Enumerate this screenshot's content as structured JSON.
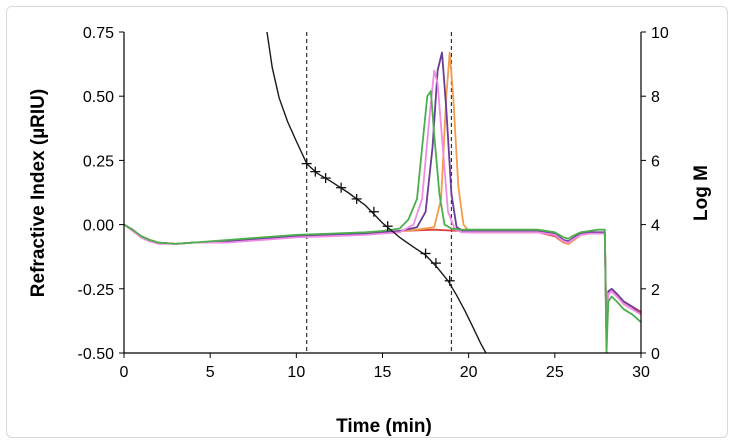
{
  "chart_data": {
    "type": "line",
    "xlabel": "Time (min)",
    "ylabel_left": "Refractive Index (µRIU)",
    "ylabel_right": "Log M",
    "xlim": [
      0,
      30
    ],
    "ylim_left": [
      -0.5,
      0.75
    ],
    "ylim_right": [
      0,
      10
    ],
    "x_ticks": [
      "0",
      "5",
      "10",
      "15",
      "20",
      "25",
      "30"
    ],
    "y_left_ticks": [
      "0.75",
      "0.50",
      "0.25",
      "0.00",
      "-0.25",
      "-0.50"
    ],
    "y_right_ticks": [
      "10",
      "8",
      "6",
      "4",
      "2",
      "0"
    ],
    "grid": false,
    "vlines": [
      10.6,
      19.0
    ],
    "colors": {
      "green": "#4cae4c",
      "pink": "#f08ce6",
      "purple": "#6a3d9a",
      "orange": "#f39c4c",
      "red": "#d94040",
      "calibration": "#1a1a1a"
    },
    "series": [
      {
        "color": "green",
        "axis": "left",
        "x": [
          0,
          0.5,
          1.0,
          1.5,
          2.0,
          3.0,
          4.0,
          6.0,
          8.0,
          10.0,
          12.0,
          14.0,
          15.0,
          16.0,
          16.5,
          17.0,
          17.3,
          17.6,
          17.8,
          18.0,
          18.3,
          18.6,
          19.0,
          19.5,
          20.0,
          22.0,
          24.0,
          25.0,
          25.5,
          25.8,
          26.0,
          26.5,
          27.0,
          27.5,
          27.9,
          28.0,
          28.1,
          28.3,
          28.6,
          29.0,
          29.5,
          30.0
        ],
        "y": [
          0.0,
          -0.02,
          -0.045,
          -0.06,
          -0.07,
          -0.075,
          -0.07,
          -0.06,
          -0.05,
          -0.04,
          -0.035,
          -0.03,
          -0.025,
          -0.015,
          0.02,
          0.1,
          0.3,
          0.5,
          0.52,
          0.35,
          0.12,
          0.0,
          -0.015,
          -0.02,
          -0.02,
          -0.02,
          -0.02,
          -0.03,
          -0.05,
          -0.055,
          -0.045,
          -0.03,
          -0.025,
          -0.02,
          -0.02,
          -0.5,
          -0.3,
          -0.28,
          -0.3,
          -0.33,
          -0.35,
          -0.38
        ]
      },
      {
        "color": "pink",
        "axis": "left",
        "x": [
          0,
          0.5,
          1.0,
          1.5,
          2.0,
          3.0,
          4.0,
          6.0,
          8.0,
          10.0,
          12.0,
          14.0,
          15.0,
          16.0,
          16.8,
          17.3,
          17.7,
          18.0,
          18.2,
          18.5,
          18.8,
          19.2,
          19.6,
          20.0,
          22.0,
          24.0,
          25.0,
          25.5,
          25.8,
          26.0,
          26.5,
          27.0,
          27.5,
          27.9,
          28.0,
          28.1,
          28.3,
          28.6,
          29.0,
          29.5,
          30.0
        ],
        "y": [
          0.0,
          -0.025,
          -0.05,
          -0.065,
          -0.075,
          -0.075,
          -0.07,
          -0.07,
          -0.06,
          -0.05,
          -0.045,
          -0.04,
          -0.035,
          -0.03,
          0.0,
          0.1,
          0.4,
          0.6,
          0.55,
          0.3,
          0.05,
          -0.02,
          -0.03,
          -0.03,
          -0.03,
          -0.03,
          -0.04,
          -0.065,
          -0.07,
          -0.06,
          -0.04,
          -0.035,
          -0.035,
          -0.035,
          -0.45,
          -0.27,
          -0.26,
          -0.28,
          -0.31,
          -0.33,
          -0.35
        ]
      },
      {
        "color": "purple",
        "axis": "left",
        "x": [
          0,
          0.5,
          1.0,
          1.5,
          2.0,
          3.0,
          4.0,
          6.0,
          8.0,
          10.0,
          12.0,
          14.0,
          15.0,
          16.0,
          17.0,
          17.5,
          17.9,
          18.2,
          18.45,
          18.7,
          19.0,
          19.3,
          19.7,
          20.0,
          22.0,
          24.0,
          25.0,
          25.5,
          25.8,
          26.0,
          26.5,
          27.0,
          27.5,
          27.9,
          28.0,
          28.1,
          28.3,
          28.6,
          29.0,
          29.5,
          30.0
        ],
        "y": [
          0.0,
          -0.02,
          -0.05,
          -0.065,
          -0.07,
          -0.075,
          -0.07,
          -0.065,
          -0.055,
          -0.045,
          -0.04,
          -0.035,
          -0.03,
          -0.025,
          -0.01,
          0.05,
          0.3,
          0.6,
          0.67,
          0.45,
          0.12,
          -0.01,
          -0.025,
          -0.025,
          -0.025,
          -0.025,
          -0.035,
          -0.06,
          -0.065,
          -0.055,
          -0.035,
          -0.03,
          -0.03,
          -0.03,
          -0.45,
          -0.26,
          -0.25,
          -0.27,
          -0.3,
          -0.32,
          -0.35
        ]
      },
      {
        "color": "orange",
        "axis": "left",
        "x": [
          0,
          0.5,
          1.0,
          1.5,
          2.0,
          3.0,
          4.0,
          6.0,
          8.0,
          10.0,
          12.0,
          14.0,
          15.0,
          16.0,
          17.0,
          18.0,
          18.4,
          18.7,
          18.9,
          19.1,
          19.4,
          19.7,
          20.0,
          20.4,
          22.0,
          24.0,
          25.0,
          25.5,
          25.8,
          26.0,
          26.5,
          27.0,
          27.5,
          27.9,
          28.0,
          28.1,
          28.3,
          28.6,
          29.0,
          29.5,
          30.0
        ],
        "y": [
          0.0,
          -0.02,
          -0.045,
          -0.06,
          -0.07,
          -0.075,
          -0.07,
          -0.065,
          -0.055,
          -0.045,
          -0.04,
          -0.035,
          -0.03,
          -0.025,
          -0.02,
          -0.01,
          0.1,
          0.5,
          0.67,
          0.5,
          0.15,
          0.0,
          -0.025,
          -0.03,
          -0.03,
          -0.03,
          -0.04,
          -0.07,
          -0.075,
          -0.065,
          -0.04,
          -0.035,
          -0.035,
          -0.035,
          -0.45,
          -0.27,
          -0.26,
          -0.28,
          -0.31,
          -0.33,
          -0.35
        ]
      },
      {
        "color": "red",
        "axis": "left",
        "x": [
          0,
          0.5,
          1.0,
          1.5,
          2.0,
          3.0,
          4.0,
          6.0,
          8.0,
          10.0,
          12.0,
          14.0,
          15.0,
          16.0,
          18.0,
          19.5,
          20.0,
          22.0,
          24.0,
          25.0,
          25.5,
          25.8,
          26.0,
          26.5,
          27.0,
          27.5,
          27.9,
          28.0,
          28.1,
          28.3,
          28.6,
          29.0,
          29.5,
          30.0
        ],
        "y": [
          0.0,
          -0.02,
          -0.045,
          -0.06,
          -0.07,
          -0.075,
          -0.07,
          -0.065,
          -0.055,
          -0.045,
          -0.04,
          -0.035,
          -0.03,
          -0.025,
          -0.02,
          -0.025,
          -0.03,
          -0.03,
          -0.03,
          -0.045,
          -0.07,
          -0.075,
          -0.065,
          -0.04,
          -0.035,
          -0.035,
          -0.035,
          -0.4,
          -0.27,
          -0.26,
          -0.28,
          -0.3,
          -0.32,
          -0.34
        ]
      },
      {
        "color": "calibration",
        "axis": "right",
        "x": [
          8.3,
          8.6,
          9.0,
          9.5,
          10.0,
          10.6,
          11.2,
          12.0,
          13.0,
          14.0,
          15.0,
          16.0,
          16.8,
          17.5,
          18.2,
          18.8,
          19.3,
          19.8,
          20.3,
          20.7,
          21.0
        ],
        "y": [
          10.0,
          8.9,
          7.95,
          7.2,
          6.6,
          5.9,
          5.6,
          5.35,
          5.0,
          4.6,
          4.05,
          3.6,
          3.3,
          3.05,
          2.65,
          2.25,
          1.8,
          1.3,
          0.75,
          0.3,
          0.0
        ]
      }
    ],
    "calibration_markers": {
      "x": [
        10.6,
        11.1,
        11.7,
        12.6,
        13.5,
        14.5,
        15.3,
        17.5,
        18.1,
        18.9
      ],
      "y": [
        5.9,
        5.65,
        5.45,
        5.15,
        4.8,
        4.4,
        3.95,
        3.1,
        2.8,
        2.25
      ]
    }
  }
}
